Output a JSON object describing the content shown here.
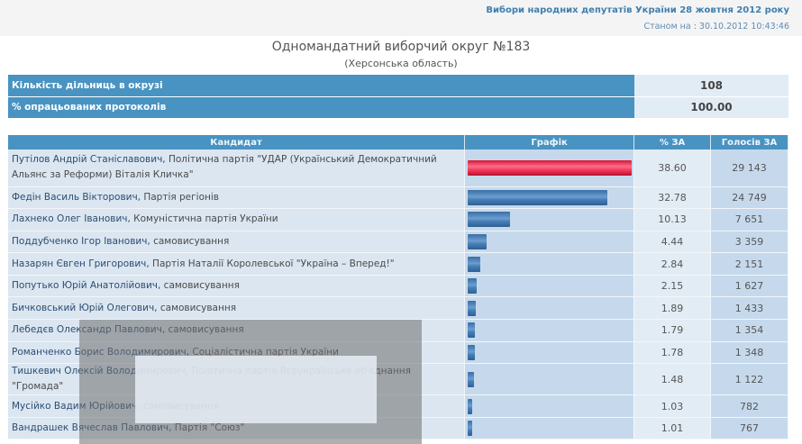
{
  "header": {
    "election_title": "Вибори народних депутатів України 28 жовтня 2012 року",
    "status_time": "Станом на : 30.10.2012 10:43:46",
    "district_title": "Одномандатний виборчий округ №183",
    "district_region": "(Херсонська область)"
  },
  "summary": [
    {
      "label": "Кількість дільниць в окрузі",
      "value": "108"
    },
    {
      "label": "% опрацьованих протоколів",
      "value": "100.00"
    }
  ],
  "table": {
    "columns": [
      "Кандидат",
      "Графік",
      "% ЗА",
      "Голосів ЗА"
    ],
    "rows": [
      {
        "name": "Путілов Андрій Станіславович,",
        "party": " Політична партія \"УДАР (Український Демократичний Альянс за Реформи) Віталія Кличка\"",
        "pct": "38.60",
        "votes": "29 143",
        "bar_pct": 100,
        "leader": true
      },
      {
        "name": "Федін Василь Вікторович,",
        "party": " Партія регіонів",
        "pct": "32.78",
        "votes": "24 749",
        "bar_pct": 85
      },
      {
        "name": "Лахнеко Олег Іванович,",
        "party": " Комуністична партія України",
        "pct": "10.13",
        "votes": "7 651",
        "bar_pct": 26
      },
      {
        "name": "Поддубченко Ігор Іванович,",
        "party": " самовисування",
        "pct": "4.44",
        "votes": "3 359",
        "bar_pct": 11.5
      },
      {
        "name": "Назарян Євген Григорович,",
        "party": " Партія Наталії Королевської \"Україна – Вперед!\"",
        "pct": "2.84",
        "votes": "2 151",
        "bar_pct": 7.4
      },
      {
        "name": "Попутько Юрій Анатолійович,",
        "party": " самовисування",
        "pct": "2.15",
        "votes": "1 627",
        "bar_pct": 5.6
      },
      {
        "name": "Бичковський Юрій Олегович,",
        "party": " самовисування",
        "pct": "1.89",
        "votes": "1 433",
        "bar_pct": 4.9
      },
      {
        "name": "Лебедєв Олександр Павлович,",
        "party": " самовисування",
        "pct": "1.79",
        "votes": "1 354",
        "bar_pct": 4.6
      },
      {
        "name": "Романченко Борис Володимирович,",
        "party": " Соціалістична партія України",
        "pct": "1.78",
        "votes": "1 348",
        "bar_pct": 4.6
      },
      {
        "name": "Тишкевич Олексій Володимирович,",
        "party": " Політична партія Всеукраїнське об'єднання \"Громада\"",
        "pct": "1.48",
        "votes": "1 122",
        "bar_pct": 3.8
      },
      {
        "name": "Мусійко Вадим Юрійович,",
        "party": " самовисування",
        "pct": "1.03",
        "votes": "782",
        "bar_pct": 2.7
      },
      {
        "name": "Вандрашек Вячеслав Павлович,",
        "party": " Партія \"Союз\"",
        "pct": "1.01",
        "votes": "767",
        "bar_pct": 2.6
      }
    ]
  },
  "colors": {
    "header_blue": "#4893c1",
    "leader_bar": "#f03a5c",
    "bar_blue": "#4b82b9",
    "title_blue": "#3f7fae"
  }
}
